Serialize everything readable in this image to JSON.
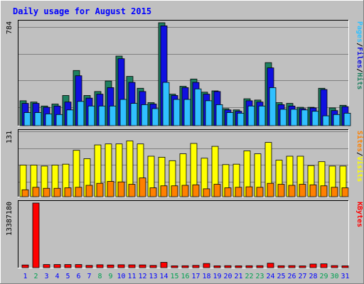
{
  "chart_data": {
    "type": "bar",
    "title": "Daily usage for August 2015",
    "categories": [
      "1",
      "2",
      "3",
      "4",
      "5",
      "6",
      "7",
      "8",
      "9",
      "10",
      "11",
      "12",
      "13",
      "14",
      "15",
      "16",
      "17",
      "18",
      "19",
      "20",
      "21",
      "22",
      "23",
      "24",
      "25",
      "26",
      "27",
      "28",
      "29",
      "30",
      "31"
    ],
    "weekend_days": [
      "2",
      "8",
      "9",
      "15",
      "16",
      "22",
      "23",
      "29",
      "30"
    ],
    "panels": [
      {
        "id": "top",
        "ylabel_parts": [
          "Pages",
          "Files",
          "Hits"
        ],
        "tick_label": "784",
        "ylim": [
          0,
          784
        ],
        "series": [
          {
            "name": "Hits",
            "color": "#1e8060",
            "values": [
              190,
              180,
              150,
              165,
              230,
              420,
              230,
              260,
              340,
              530,
              375,
              285,
              175,
              784,
              240,
              300,
              355,
              255,
              265,
              130,
              120,
              205,
              195,
              480,
              175,
              170,
              140,
              140,
              285,
              135,
              155
            ]
          },
          {
            "name": "Files",
            "color": "#1010e0",
            "values": [
              170,
              170,
              140,
              150,
              180,
              380,
              210,
              240,
              290,
              510,
              330,
              260,
              165,
              760,
              230,
              290,
              330,
              240,
              260,
              120,
              110,
              190,
              180,
              440,
              160,
              150,
              130,
              135,
              275,
              115,
              145
            ]
          },
          {
            "name": "Pages",
            "color": "#30c0ff",
            "values": [
              100,
              100,
              90,
              85,
              120,
              185,
              150,
              150,
              150,
              200,
              170,
              160,
              130,
              330,
              200,
              200,
              280,
              190,
              160,
              100,
              95,
              150,
              150,
              290,
              125,
              125,
              120,
              110,
              75,
              85,
              95
            ]
          }
        ]
      },
      {
        "id": "middle",
        "ylabel_parts": [
          "Sites",
          "Visits"
        ],
        "tick_label": "131",
        "ylim": [
          0,
          131
        ],
        "series": [
          {
            "name": "Visits",
            "color": "#ffff00",
            "values": [
              64,
              64,
              62,
              64,
              66,
              94,
              77,
              105,
              107,
              107,
              113,
              107,
              82,
              80,
              73,
              87,
              108,
              78,
              102,
              65,
              66,
              93,
              87,
              110,
              74,
              82,
              82,
              63,
              71,
              62,
              62
            ]
          },
          {
            "name": "Sites",
            "color": "#ff8000",
            "values": [
              14,
              19,
              17,
              17,
              18,
              19,
              23,
              27,
              31,
              30,
              25,
              38,
              18,
              22,
              22,
              23,
              24,
              16,
              25,
              18,
              19,
              20,
              19,
              27,
              25,
              23,
              25,
              24,
              22,
              19,
              18
            ]
          }
        ]
      },
      {
        "id": "bottom",
        "ylabel_parts": [
          "KBytes"
        ],
        "tick_label": "13387180",
        "ylim": [
          0,
          13387180
        ],
        "series": [
          {
            "name": "KBytes",
            "color": "#ff0000",
            "values": [
              560000,
              13387180,
              650000,
              650000,
              640000,
              640000,
              470000,
              600000,
              560000,
              600000,
              590000,
              580000,
              470000,
              1100000,
              380000,
              390000,
              470000,
              870000,
              380000,
              410000,
              380000,
              400000,
              410000,
              920000,
              400000,
              420000,
              370000,
              750000,
              800000,
              430000,
              380000
            ]
          }
        ]
      }
    ],
    "grid": true,
    "legend": "right",
    "colors": {
      "background": "#c0c0c0",
      "title": "#0000ff",
      "weekday_label": "#0000ff",
      "weekend_label": "#00a050",
      "grid": "#808080"
    }
  }
}
